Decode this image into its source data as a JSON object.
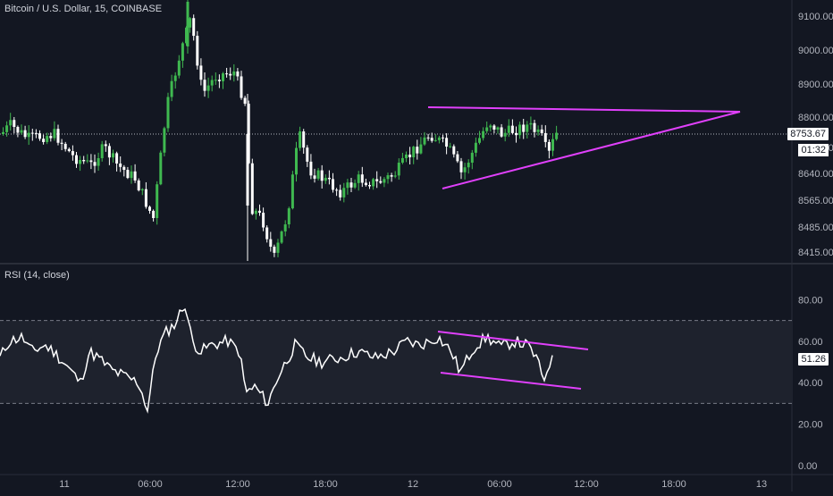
{
  "chart_title": "Bitcoin / U.S. Dollar, 15, COINBASE",
  "rsi_title": "RSI (14, close)",
  "colors": {
    "background": "#131722",
    "candle_up": "#26a69a",
    "candle_up_alt": "#3fb950",
    "candle_down": "#ffffff",
    "trendline": "#e040fb",
    "axis_text": "#b2b5be",
    "rsi_line": "#ffffff",
    "rsi_band": "#1e222d"
  },
  "price_axis": {
    "ticks": [
      "9100.00",
      "9000.00",
      "8900.00",
      "8800.00",
      "8710.00",
      "8640.00",
      "8565.00",
      "8485.00",
      "8415.00"
    ],
    "current_price": "8753.67",
    "countdown": "01:32"
  },
  "rsi_axis": {
    "ticks": [
      "80.00",
      "60.00",
      "40.00",
      "20.00",
      "0.00"
    ],
    "current_value": "51.26",
    "upper_band": 70,
    "lower_band": 30
  },
  "time_axis": {
    "ticks": [
      "11",
      "06:00",
      "12:00",
      "18:00",
      "12",
      "06:00",
      "12:00",
      "18:00",
      "13"
    ]
  },
  "chart_data": [
    {
      "type": "candlestick",
      "title": "Bitcoin / U.S. Dollar, 15, COINBASE",
      "y_ticks": [
        "9100.00",
        "9000.00",
        "8900.00",
        "8800.00",
        "8640.00",
        "8565.00",
        "8485.00",
        "8415.00"
      ],
      "last_price": 8753.67
    },
    {
      "type": "line",
      "title": "RSI (14, close)",
      "y_ticks": [
        "80.00",
        "60.00",
        "40.00",
        "20.00",
        "0.00"
      ],
      "last_value": 51.26,
      "bands": [
        30,
        70
      ]
    }
  ]
}
